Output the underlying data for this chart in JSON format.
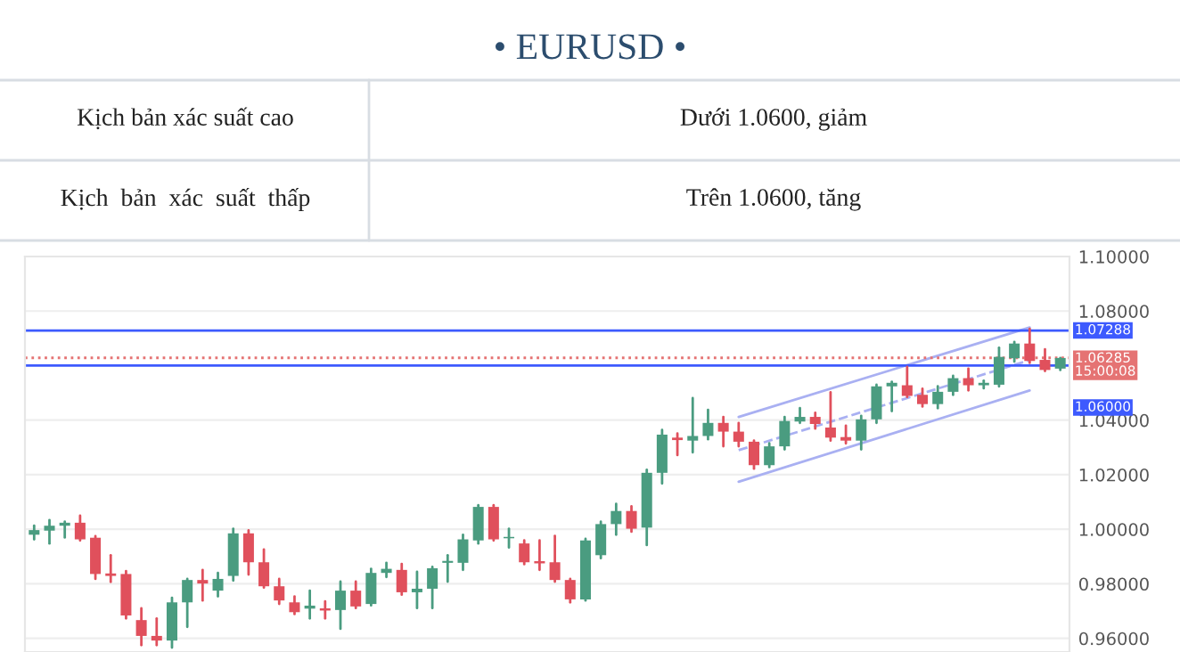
{
  "chart_data": {
    "type": "candlestick",
    "title": "• EURUSD •",
    "annotations": [
      "Kịch bản xác suất cao",
      "Dưới 1.0600, giảm",
      "Kịch  bản  xác  suất  thấp",
      "Trên 1.0600, tăng"
    ],
    "categories": [
      null,
      null,
      null,
      null,
      null,
      null,
      null,
      null,
      null,
      null,
      null,
      null,
      null,
      null,
      null,
      null,
      null,
      null,
      null,
      null,
      null,
      null,
      null,
      null,
      null,
      null,
      null,
      null,
      null,
      null,
      null,
      null,
      null,
      null,
      null,
      null,
      null,
      null,
      null,
      null,
      null,
      null,
      null,
      null,
      null,
      null,
      null,
      null,
      null,
      null,
      null,
      null,
      null,
      null,
      null,
      null,
      null,
      null,
      null,
      null,
      null,
      null,
      null,
      null,
      null,
      null,
      null,
      null
    ],
    "ohlc": [
      [
        0.998,
        1.0013,
        0.9963,
        0.9997
      ],
      [
        0.9995,
        1.0034,
        0.9948,
        1.0013
      ],
      [
        1.0013,
        1.0028,
        0.997,
        1.0024
      ],
      [
        1.0024,
        1.005,
        0.9959,
        0.9963
      ],
      [
        0.9969,
        0.9975,
        0.9818,
        0.9836
      ],
      [
        0.9838,
        0.9905,
        0.9807,
        0.9829
      ],
      [
        0.9836,
        0.9847,
        0.9673,
        0.9684
      ],
      [
        0.9667,
        0.971,
        0.9575,
        0.9609
      ],
      [
        0.9609,
        0.9673,
        0.9575,
        0.9592
      ],
      [
        0.9592,
        0.9749,
        0.9566,
        0.9732
      ],
      [
        0.9732,
        0.9818,
        0.9642,
        0.9814
      ],
      [
        0.9814,
        0.9851,
        0.9739,
        0.9801
      ],
      [
        0.9775,
        0.984,
        0.9754,
        0.9818
      ],
      [
        0.9829,
        1.0002,
        0.9812,
        0.9985
      ],
      [
        0.9985,
        0.9996,
        0.9834,
        0.9879
      ],
      [
        0.9879,
        0.9926,
        0.9786,
        0.9791
      ],
      [
        0.9791,
        0.9818,
        0.9726,
        0.9739
      ],
      [
        0.9732,
        0.9754,
        0.9689,
        0.9696
      ],
      [
        0.9709,
        0.9775,
        0.9673,
        0.972
      ],
      [
        0.971,
        0.9736,
        0.9673,
        0.9702
      ],
      [
        0.9704,
        0.9808,
        0.9635,
        0.9775
      ],
      [
        0.9775,
        0.9808,
        0.9711,
        0.9717
      ],
      [
        0.9726,
        0.9855,
        0.9721,
        0.984
      ],
      [
        0.984,
        0.9877,
        0.9825,
        0.9855
      ],
      [
        0.9851,
        0.9873,
        0.976,
        0.9769
      ],
      [
        0.9769,
        0.9844,
        0.9711,
        0.9782
      ],
      [
        0.9782,
        0.9862,
        0.9711,
        0.9857
      ],
      [
        0.9877,
        0.9905,
        0.9808,
        0.9884
      ],
      [
        0.9877,
        0.998,
        0.9851,
        0.9963
      ],
      [
        0.9959,
        1.0088,
        0.9948,
        1.0082
      ],
      [
        1.0082,
        1.0088,
        0.9959,
        0.9963
      ],
      [
        0.9967,
        1.0002,
        0.9933,
        0.9972
      ],
      [
        0.9948,
        0.9959,
        0.9872,
        0.9879
      ],
      [
        0.9883,
        0.9959,
        0.9851,
        0.9875
      ],
      [
        0.9879,
        0.9976,
        0.9808,
        0.9814
      ],
      [
        0.9814,
        0.9818,
        0.9732,
        0.9743
      ],
      [
        0.9743,
        0.9965,
        0.9739,
        0.9959
      ],
      [
        0.9905,
        1.0028,
        0.9894,
        1.0019
      ],
      [
        1.0019,
        1.0093,
        0.998,
        1.0067
      ],
      [
        1.0067,
        1.0084,
        0.9991,
        1.0002
      ],
      [
        1.0006,
        1.0218,
        0.9942,
        1.0207
      ],
      [
        1.0207,
        1.0364,
        1.0168,
        1.0347
      ],
      [
        1.0336,
        1.0351,
        1.0272,
        1.0327
      ],
      [
        1.0325,
        1.0481,
        1.0282,
        1.0342
      ],
      [
        1.0342,
        1.0438,
        1.033,
        1.039
      ],
      [
        1.039,
        1.0412,
        1.0304,
        1.0358
      ],
      [
        1.0358,
        1.039,
        1.0304,
        1.0321
      ],
      [
        1.0321,
        1.0325,
        1.0222,
        1.0235
      ],
      [
        1.0235,
        1.0315,
        1.0228,
        1.0304
      ],
      [
        1.0304,
        1.0412,
        1.0293,
        1.0397
      ],
      [
        1.0395,
        1.0444,
        1.039,
        1.0412
      ],
      [
        1.0412,
        1.0427,
        1.0369,
        1.0386
      ],
      [
        1.0373,
        1.0502,
        1.0325,
        1.0336
      ],
      [
        1.0338,
        1.038,
        1.0315,
        1.0325
      ],
      [
        1.0325,
        1.0416,
        1.0293,
        1.0403
      ],
      [
        1.0403,
        1.053,
        1.039,
        1.0524
      ],
      [
        1.0524,
        1.0541,
        1.0433,
        1.0537
      ],
      [
        1.0528,
        1.0595,
        1.0485,
        1.0489
      ],
      [
        1.0493,
        1.0515,
        1.045,
        1.0459
      ],
      [
        1.0459,
        1.0524,
        1.0444,
        1.0504
      ],
      [
        1.0504,
        1.0563,
        1.0493,
        1.0554
      ],
      [
        1.0554,
        1.0589,
        1.0509,
        1.0528
      ],
      [
        1.0528,
        1.0545,
        1.0517,
        1.0537
      ],
      [
        1.053,
        1.0666,
        1.0524,
        1.0632
      ],
      [
        1.0627,
        1.0687,
        1.0615,
        1.0681
      ],
      [
        1.0681,
        1.0735,
        1.061,
        1.0617
      ],
      [
        1.0621,
        1.066,
        1.058,
        1.0584
      ],
      [
        1.0589,
        1.0628,
        1.0584,
        1.0628
      ]
    ],
    "colors": [
      "#4a9c80",
      "#4a9c80",
      "#4a9c80",
      "#e0505c",
      "#e0505c",
      "#e0505c",
      "#e0505c",
      "#e0505c",
      "#e0505c",
      "#4a9c80",
      "#4a9c80",
      "#e0505c",
      "#4a9c80",
      "#4a9c80",
      "#e0505c",
      "#e0505c",
      "#e0505c",
      "#e0505c",
      "#4a9c80",
      "#e0505c",
      "#4a9c80",
      "#e0505c",
      "#4a9c80",
      "#4a9c80",
      "#e0505c",
      "#4a9c80",
      "#4a9c80",
      "#4a9c80",
      "#4a9c80",
      "#4a9c80",
      "#e0505c",
      "#4a9c80",
      "#e0505c",
      "#e0505c",
      "#e0505c",
      "#e0505c",
      "#4a9c80",
      "#4a9c80",
      "#4a9c80",
      "#e0505c",
      "#4a9c80",
      "#4a9c80",
      "#e0505c",
      "#4a9c80",
      "#4a9c80",
      "#e0505c",
      "#e0505c",
      "#e0505c",
      "#4a9c80",
      "#4a9c80",
      "#4a9c80",
      "#e0505c",
      "#e0505c",
      "#e0505c",
      "#4a9c80",
      "#4a9c80",
      "#4a9c80",
      "#e0505c",
      "#e0505c",
      "#4a9c80",
      "#4a9c80",
      "#e0505c",
      "#4a9c80",
      "#4a9c80",
      "#4a9c80",
      "#e0505c",
      "#e0505c",
      "#4a9c80"
    ],
    "series": [
      {
        "type": "line",
        "color": "#a9b0f2",
        "values": [
          null,
          null,
          null,
          null,
          null,
          null,
          null,
          null,
          null,
          null,
          null,
          null,
          null,
          null,
          null,
          null,
          null,
          null,
          null,
          null,
          null,
          null,
          null,
          null,
          null,
          null,
          null,
          null,
          null,
          null,
          null,
          null,
          null,
          null,
          null,
          null,
          null,
          null,
          null,
          null,
          null,
          null,
          null,
          null,
          null,
          null,
          1.0412,
          null,
          null,
          null,
          null,
          null,
          null,
          null,
          null,
          null,
          null,
          null,
          null,
          null,
          null,
          null,
          null,
          null,
          null,
          1.074,
          null,
          null
        ],
        "line_style": "solid"
      },
      {
        "type": "line",
        "color": "#a9b0f2",
        "values": [
          null,
          null,
          null,
          null,
          null,
          null,
          null,
          null,
          null,
          null,
          null,
          null,
          null,
          null,
          null,
          null,
          null,
          null,
          null,
          null,
          null,
          null,
          null,
          null,
          null,
          null,
          null,
          null,
          null,
          null,
          null,
          null,
          null,
          null,
          null,
          null,
          null,
          null,
          null,
          null,
          null,
          null,
          null,
          null,
          null,
          null,
          1.029,
          null,
          null,
          null,
          null,
          null,
          null,
          null,
          null,
          null,
          null,
          null,
          null,
          null,
          null,
          null,
          null,
          null,
          null,
          1.062,
          null,
          null
        ],
        "line_style": "dashed"
      },
      {
        "type": "line",
        "color": "#a9b0f2",
        "values": [
          null,
          null,
          null,
          null,
          null,
          null,
          null,
          null,
          null,
          null,
          null,
          null,
          null,
          null,
          null,
          null,
          null,
          null,
          null,
          null,
          null,
          null,
          null,
          null,
          null,
          null,
          null,
          null,
          null,
          null,
          null,
          null,
          null,
          null,
          null,
          null,
          null,
          null,
          null,
          null,
          null,
          null,
          null,
          null,
          null,
          null,
          1.0174,
          null,
          null,
          null,
          null,
          null,
          null,
          null,
          null,
          null,
          null,
          null,
          null,
          null,
          null,
          null,
          null,
          null,
          null,
          1.0509,
          null,
          null
        ],
        "line_style": "solid"
      }
    ],
    "ref_lines": [
      {
        "axis": "y",
        "value": 1.07288,
        "label": "1.07288",
        "color": "#3d5afe",
        "line_style": "solid"
      },
      {
        "axis": "y",
        "value": 1.06285,
        "label": "1.06285\n15:00:08",
        "color": "#e57373",
        "line_style": "dotted"
      },
      {
        "axis": "y",
        "value": 1.06,
        "label": "1.06000",
        "color": "#3d5afe",
        "line_style": "solid"
      }
    ],
    "ylim": [
      0.955,
      1.1
    ],
    "yticks": [
      {
        "value": 0.96,
        "label": "0.96000"
      },
      {
        "value": 0.98,
        "label": "0.98000"
      },
      {
        "value": 1.0,
        "label": "1.00000"
      },
      {
        "value": 1.02,
        "label": "1.02000"
      },
      {
        "value": 1.04,
        "label": "1.04000"
      },
      {
        "value": 1.08,
        "label": "1.08000"
      },
      {
        "value": 1.1,
        "label": "1.10000"
      }
    ],
    "grid": "y"
  }
}
